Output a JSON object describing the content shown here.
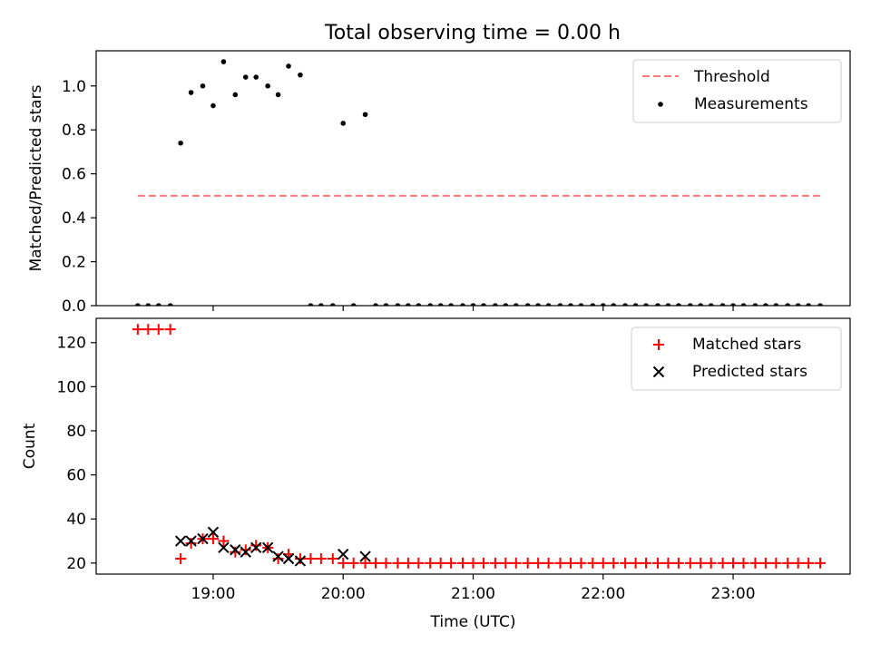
{
  "figure": {
    "title": "Total observing time = 0.00 h"
  },
  "chart_data": [
    {
      "type": "scatter",
      "panel": "top",
      "title": "Total observing time = 0.00 h",
      "xlabel": "",
      "ylabel": "Matched/Predicted stars",
      "x_unit": "hours (UTC)",
      "xlim": [
        18.1,
        23.9
      ],
      "ylim": [
        0,
        1.16
      ],
      "yticks": [
        "0.0",
        "0.2",
        "0.4",
        "0.6",
        "0.8",
        "1.0"
      ],
      "ytick_values": [
        0,
        0.2,
        0.4,
        0.6,
        0.8,
        1.0
      ],
      "xticks": [
        "",
        "",
        "",
        "",
        ""
      ],
      "xtick_values": [
        19,
        20,
        21,
        22,
        23
      ],
      "grid": false,
      "legend_position": "top-right",
      "series": [
        {
          "name": "Threshold",
          "style": "dashed-line",
          "color": "#ff7b7b",
          "x": [
            18.42,
            23.67
          ],
          "y": [
            0.5,
            0.5
          ]
        },
        {
          "name": "Measurements",
          "style": "dot",
          "color": "#000000",
          "x": [
            18.42,
            18.5,
            18.58,
            18.67,
            18.75,
            18.83,
            18.92,
            19.0,
            19.08,
            19.17,
            19.25,
            19.33,
            19.42,
            19.5,
            19.58,
            19.67,
            19.75,
            19.83,
            19.92,
            20.0,
            20.08,
            20.17,
            20.25,
            20.33,
            20.42,
            20.5,
            20.58,
            20.67,
            20.75,
            20.83,
            20.92,
            21.0,
            21.08,
            21.17,
            21.25,
            21.33,
            21.42,
            21.5,
            21.58,
            21.67,
            21.75,
            21.83,
            21.92,
            22.0,
            22.08,
            22.17,
            22.25,
            22.33,
            22.42,
            22.5,
            22.58,
            22.67,
            22.75,
            22.83,
            22.92,
            23.0,
            23.08,
            23.17,
            23.25,
            23.33,
            23.42,
            23.5,
            23.58,
            23.67
          ],
          "y": [
            0,
            0,
            0,
            0,
            0.74,
            0.97,
            1.0,
            0.91,
            1.11,
            0.96,
            1.04,
            1.04,
            1.0,
            0.96,
            1.09,
            1.05,
            0,
            0,
            0,
            0.83,
            0,
            0.87,
            0,
            0,
            0,
            0,
            0,
            0,
            0,
            0,
            0,
            0,
            0,
            0,
            0,
            0,
            0,
            0,
            0,
            0,
            0,
            0,
            0,
            0,
            0,
            0,
            0,
            0,
            0,
            0,
            0,
            0,
            0,
            0,
            0,
            0,
            0,
            0,
            0,
            0,
            0,
            0,
            0,
            0
          ]
        }
      ]
    },
    {
      "type": "scatter",
      "panel": "bottom",
      "xlabel": "Time (UTC)",
      "ylabel": "Count",
      "x_unit": "hours (UTC)",
      "xlim": [
        18.1,
        23.9
      ],
      "ylim": [
        15,
        131
      ],
      "yticks": [
        "20",
        "40",
        "60",
        "80",
        "100",
        "120"
      ],
      "ytick_values": [
        20,
        40,
        60,
        80,
        100,
        120
      ],
      "xticks": [
        "19:00",
        "20:00",
        "21:00",
        "22:00",
        "23:00"
      ],
      "xtick_values": [
        19,
        20,
        21,
        22,
        23
      ],
      "grid": false,
      "legend_position": "top-right",
      "series": [
        {
          "name": "Matched stars",
          "marker": "+",
          "color": "#ff0000",
          "x": [
            18.42,
            18.5,
            18.58,
            18.67,
            18.75,
            18.83,
            18.92,
            19.0,
            19.08,
            19.17,
            19.25,
            19.33,
            19.42,
            19.5,
            19.58,
            19.67,
            19.75,
            19.83,
            19.92,
            20.0,
            20.08,
            20.17,
            20.25,
            20.33,
            20.42,
            20.5,
            20.58,
            20.67,
            20.75,
            20.83,
            20.92,
            21.0,
            21.08,
            21.17,
            21.25,
            21.33,
            21.42,
            21.5,
            21.58,
            21.67,
            21.75,
            21.83,
            21.92,
            22.0,
            22.08,
            22.17,
            22.25,
            22.33,
            22.42,
            22.5,
            22.58,
            22.67,
            22.75,
            22.83,
            22.92,
            23.0,
            23.08,
            23.17,
            23.25,
            23.33,
            23.42,
            23.5,
            23.58,
            23.67
          ],
          "y": [
            126,
            126,
            126,
            126,
            22,
            29,
            31,
            31,
            30,
            25,
            26,
            28,
            27,
            22,
            24,
            22,
            22,
            22,
            22,
            20,
            20,
            20,
            20,
            20,
            20,
            20,
            20,
            20,
            20,
            20,
            20,
            20,
            20,
            20,
            20,
            20,
            20,
            20,
            20,
            20,
            20,
            20,
            20,
            20,
            20,
            20,
            20,
            20,
            20,
            20,
            20,
            20,
            20,
            20,
            20,
            20,
            20,
            20,
            20,
            20,
            20,
            20,
            20,
            20
          ]
        },
        {
          "name": "Predicted stars",
          "marker": "x",
          "color": "#000000",
          "x": [
            18.75,
            18.83,
            18.92,
            19.0,
            19.08,
            19.17,
            19.25,
            19.33,
            19.42,
            19.5,
            19.58,
            19.67,
            20.0,
            20.17
          ],
          "y": [
            30,
            30,
            31,
            34,
            27,
            26,
            25,
            27,
            27,
            23,
            22,
            21,
            24,
            23
          ]
        }
      ]
    }
  ]
}
